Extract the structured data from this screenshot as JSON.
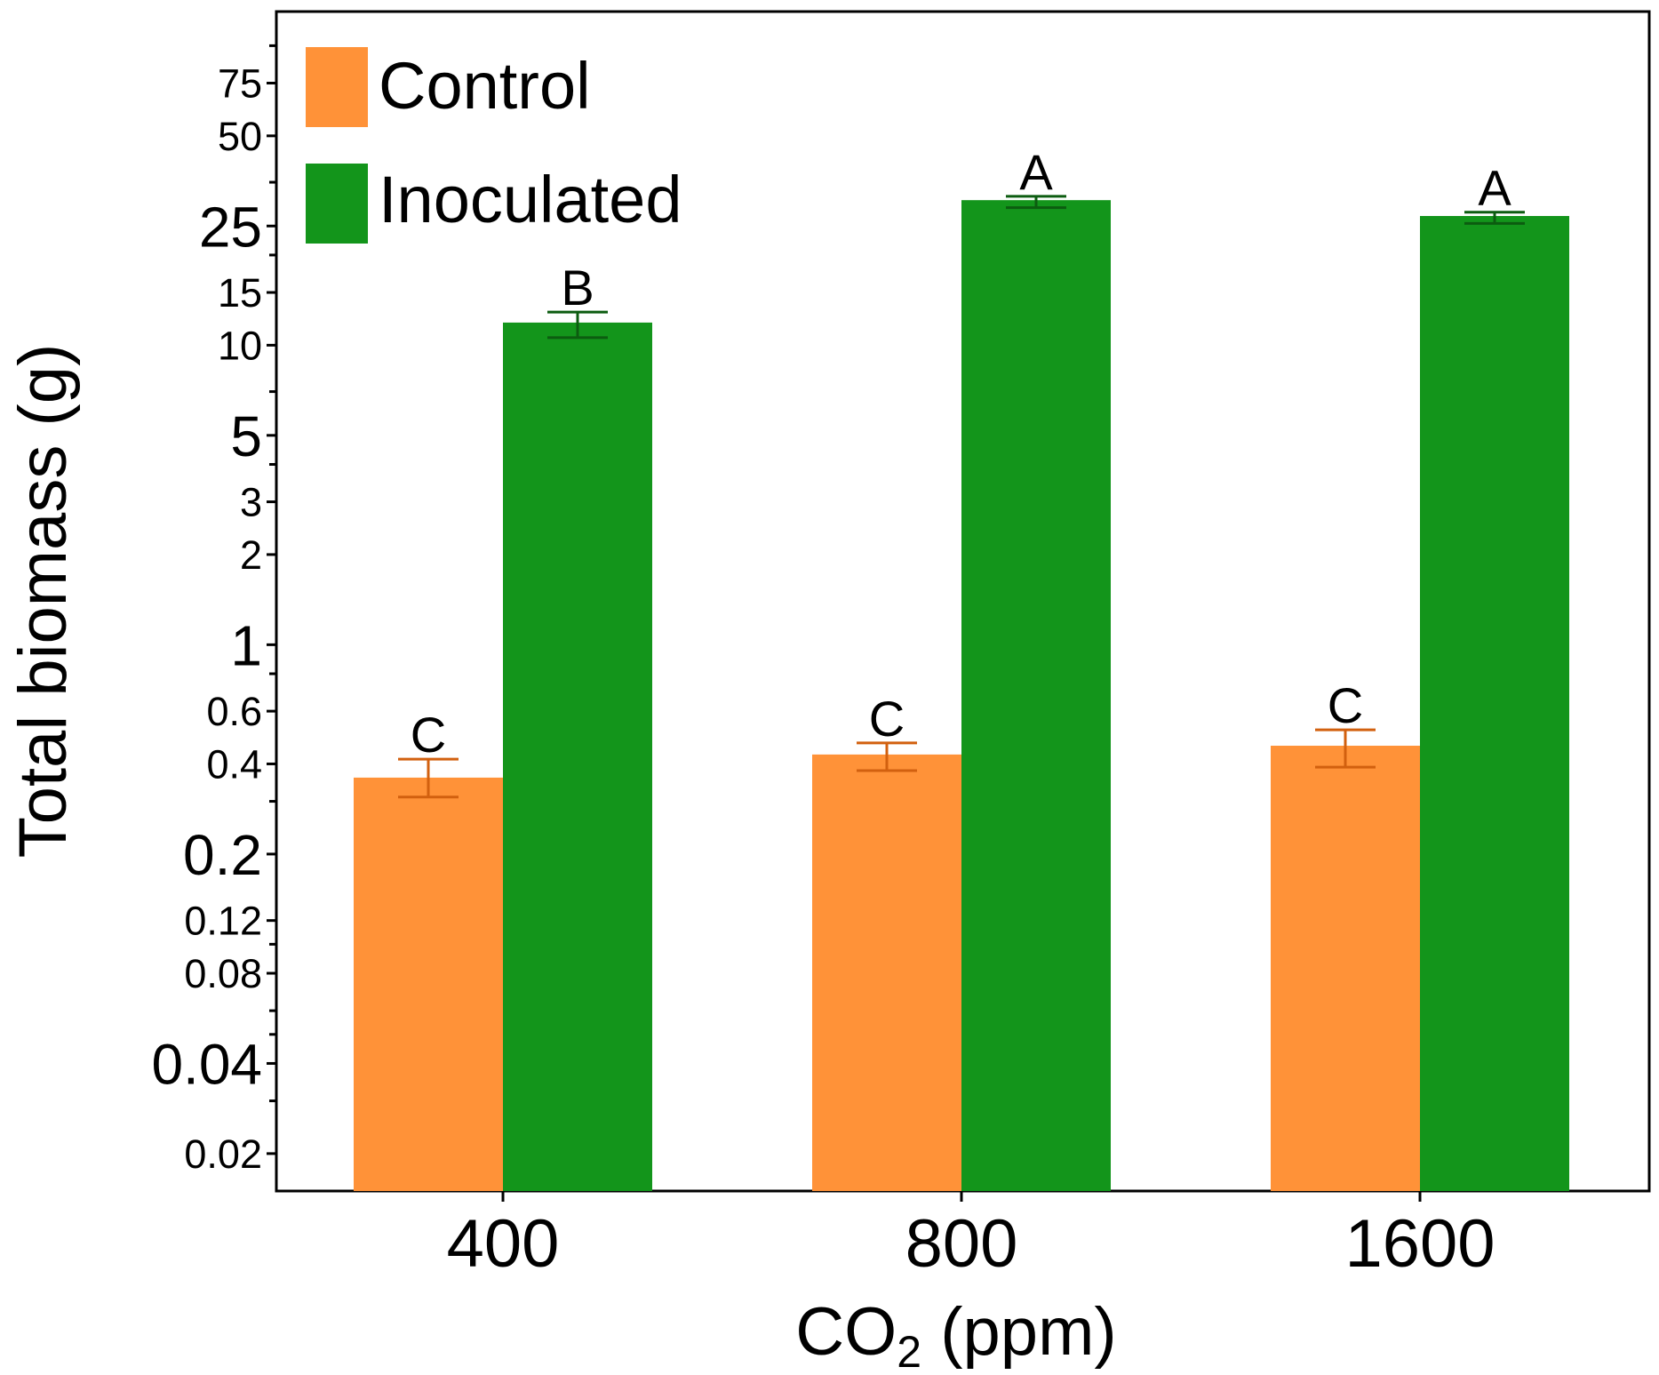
{
  "chart_data": {
    "type": "bar",
    "title": "",
    "xlabel_main": "CO",
    "xlabel_sub": "2",
    "xlabel_unit": " (ppm)",
    "ylabel": "Total biomass (g)",
    "yscale": "log",
    "ylim": [
      0.015,
      130
    ],
    "categories": [
      "400",
      "800",
      "1600"
    ],
    "yticks": [
      {
        "value": 0.02,
        "label": "0.02",
        "size": "small"
      },
      {
        "value": 0.04,
        "label": "0.04",
        "size": "large"
      },
      {
        "value": 0.08,
        "label": "0.08",
        "size": "small"
      },
      {
        "value": 0.12,
        "label": "0.12",
        "size": "small"
      },
      {
        "value": 0.2,
        "label": "0.2",
        "size": "large"
      },
      {
        "value": 0.4,
        "label": "0.4",
        "size": "small"
      },
      {
        "value": 0.6,
        "label": "0.6",
        "size": "small"
      },
      {
        "value": 1,
        "label": "1",
        "size": "large"
      },
      {
        "value": 2,
        "label": "2",
        "size": "small"
      },
      {
        "value": 3,
        "label": "3",
        "size": "small"
      },
      {
        "value": 5,
        "label": "5",
        "size": "large"
      },
      {
        "value": 10,
        "label": "10",
        "size": "small"
      },
      {
        "value": 15,
        "label": "15",
        "size": "small"
      },
      {
        "value": 25,
        "label": "25",
        "size": "large"
      },
      {
        "value": 50,
        "label": "50",
        "size": "small"
      },
      {
        "value": 75,
        "label": "75",
        "size": "small"
      }
    ],
    "minor_ticks": [
      0.03,
      0.05,
      0.06,
      0.1,
      0.3,
      0.8,
      4,
      7,
      20,
      35,
      100
    ],
    "series": [
      {
        "name": "Control",
        "color": "#FF9238",
        "error_color": "#D2600F",
        "values": [
          0.36,
          0.43,
          0.46
        ],
        "err_low": [
          0.31,
          0.38,
          0.39
        ],
        "err_high": [
          0.415,
          0.47,
          0.52
        ],
        "sig": [
          "C",
          "C",
          "C"
        ]
      },
      {
        "name": "Inoculated",
        "color": "#13951B",
        "error_color": "#0C5C10",
        "values": [
          11.9,
          30.5,
          27.0
        ],
        "err_low": [
          10.6,
          28.8,
          25.5
        ],
        "err_high": [
          12.9,
          31.4,
          27.8
        ],
        "sig": [
          "B",
          "A",
          "A"
        ]
      }
    ],
    "legend_position": "top-left"
  }
}
